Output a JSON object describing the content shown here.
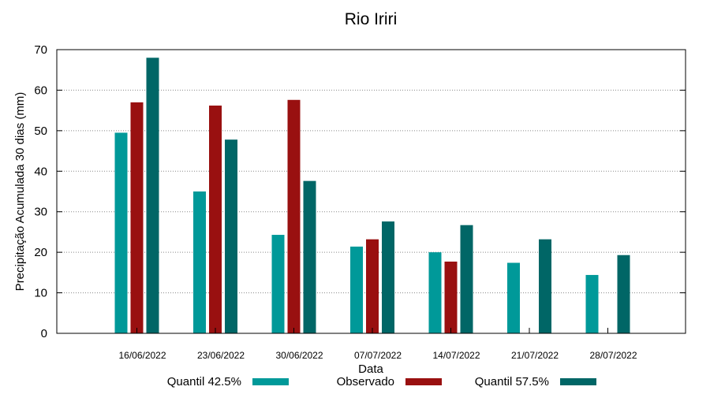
{
  "chart_data": {
    "type": "bar",
    "title": "Rio Iriri",
    "xlabel": "Data",
    "ylabel": "Precipitação Acumulada 30 dias (mm)",
    "ylim": [
      0,
      70
    ],
    "yticks": [
      0,
      10,
      20,
      30,
      40,
      50,
      60,
      70
    ],
    "grid": true,
    "legend_position": "bottom",
    "categories": [
      "16/06/2022",
      "23/06/2022",
      "30/06/2022",
      "07/07/2022",
      "14/07/2022",
      "21/07/2022",
      "28/07/2022"
    ],
    "series": [
      {
        "name": "Quantil 42.5%",
        "color": "#009999",
        "values": [
          49.5,
          35,
          24.3,
          21.4,
          20,
          17.4,
          14.4
        ]
      },
      {
        "name": "Observado",
        "color": "#991010",
        "values": [
          57,
          56.2,
          57.6,
          23.2,
          17.7,
          null,
          null
        ]
      },
      {
        "name": "Quantil 57.5%",
        "color": "#006666",
        "values": [
          68,
          47.8,
          37.6,
          27.6,
          26.7,
          23.2,
          19.3
        ]
      }
    ]
  }
}
